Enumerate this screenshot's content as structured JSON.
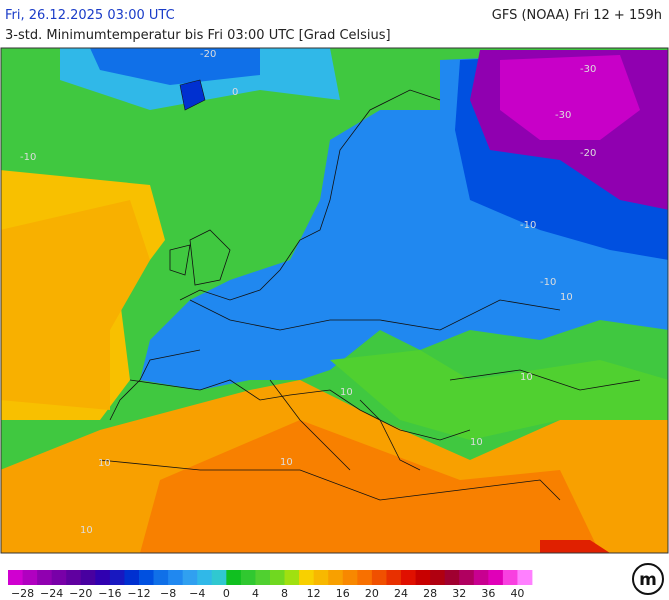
{
  "header": {
    "datetime": "Fri, 26.12.2025 03:00 UTC",
    "model": "GFS (NOAA) Fri 12 + 159h",
    "subtitle": "3-std. Minimumtemperatur bis Fri 03:00 UTC [Grad Celsius]"
  },
  "map": {
    "contour_labels": [
      "-20",
      "0",
      "-30",
      "-30",
      "-20",
      "-10",
      "-10",
      "-10",
      "10",
      "10",
      "10",
      "10",
      "10",
      "10",
      "10"
    ]
  },
  "colorbar": {
    "labels": [
      "−28",
      "−24",
      "−20",
      "−16",
      "−12",
      "−8",
      "−4",
      "0",
      "4",
      "8",
      "12",
      "16",
      "20",
      "24",
      "28",
      "32",
      "36",
      "40"
    ],
    "colors": [
      "#d000d0",
      "#b000c0",
      "#9000b0",
      "#7800a8",
      "#6000a0",
      "#4800a0",
      "#3000b0",
      "#1818c0",
      "#0030d0",
      "#0050e0",
      "#1070e8",
      "#2088f0",
      "#30a0f0",
      "#30b8e8",
      "#30c8d0",
      "#10c020",
      "#30c830",
      "#50d030",
      "#70d820",
      "#a0e010",
      "#f8d000",
      "#f8b800",
      "#f8a000",
      "#f88800",
      "#f87000",
      "#f05000",
      "#e83000",
      "#e01000",
      "#c80000",
      "#b00010",
      "#a00030",
      "#b00060",
      "#c80090",
      "#e000b8",
      "#f840e0",
      "#ff80ff"
    ]
  }
}
